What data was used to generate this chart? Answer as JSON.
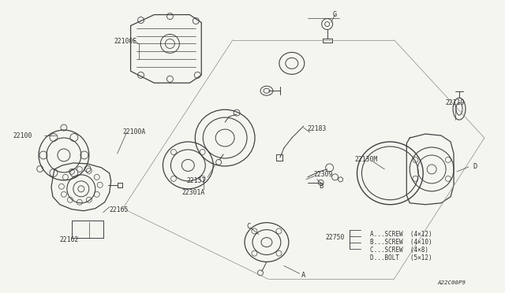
{
  "bg_color": "#f5f5f0",
  "line_color": "#404040",
  "text_color": "#303030",
  "fig_width": 6.4,
  "fig_height": 3.72,
  "dpi": 100,
  "part_code": "A22C00P9",
  "legend_lines": [
    "A...SCREW  (4×12)",
    "B...SCREW  (4×10)",
    "C...SCREW  (4×8)",
    "D...BOLT   (5×12)"
  ]
}
